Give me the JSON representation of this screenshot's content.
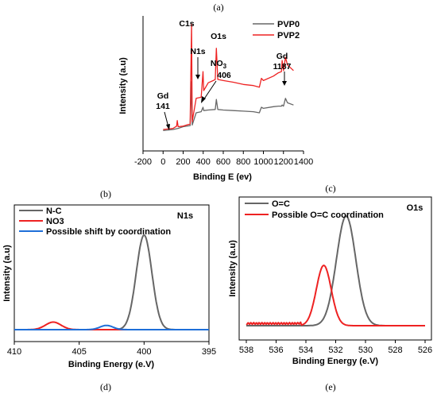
{
  "panels": {
    "a": "(a)",
    "b": "(b)",
    "c": "(c)",
    "d": "(d)",
    "e": "(e)"
  },
  "colors": {
    "gray": "#666666",
    "red": "#ee2222",
    "blue": "#1f6fd8",
    "axis": "#000000"
  },
  "chart_data": [
    {
      "id": "survey",
      "type": "line",
      "xlabel": "Binding E (ev)",
      "ylabel": "Intensity (a.u)",
      "xlim": [
        -200,
        1400
      ],
      "xticks": [
        -200,
        0,
        200,
        400,
        600,
        800,
        1000,
        1200,
        1400
      ],
      "ylim": [
        0,
        1
      ],
      "legend_position": "top-right",
      "series": [
        {
          "name": "PVP0",
          "color": "#666666",
          "points": [
            [
              0,
              0.04
            ],
            [
              100,
              0.05
            ],
            [
              150,
              0.06
            ],
            [
              200,
              0.075
            ],
            [
              270,
              0.085
            ],
            [
              284,
              0.48
            ],
            [
              290,
              0.09
            ],
            [
              330,
              0.2
            ],
            [
              380,
              0.21
            ],
            [
              398,
              0.25
            ],
            [
              405,
              0.22
            ],
            [
              450,
              0.225
            ],
            [
              520,
              0.23
            ],
            [
              531,
              0.32
            ],
            [
              545,
              0.23
            ],
            [
              600,
              0.225
            ],
            [
              700,
              0.22
            ],
            [
              800,
              0.215
            ],
            [
              900,
              0.21
            ],
            [
              960,
              0.2
            ],
            [
              980,
              0.25
            ],
            [
              1000,
              0.24
            ],
            [
              1100,
              0.255
            ],
            [
              1150,
              0.26
            ],
            [
              1180,
              0.26
            ],
            [
              1187,
              0.27
            ],
            [
              1200,
              0.26
            ],
            [
              1220,
              0.33
            ],
            [
              1240,
              0.29
            ],
            [
              1300,
              0.27
            ]
          ]
        },
        {
          "name": "PVP2",
          "color": "#ee2222",
          "points": [
            [
              0,
              0.05
            ],
            [
              100,
              0.06
            ],
            [
              135,
              0.08
            ],
            [
              141,
              0.13
            ],
            [
              150,
              0.075
            ],
            [
              200,
              0.08
            ],
            [
              270,
              0.1
            ],
            [
              284,
              1.0
            ],
            [
              290,
              0.12
            ],
            [
              330,
              0.33
            ],
            [
              380,
              0.34
            ],
            [
              398,
              0.57
            ],
            [
              405,
              0.4
            ],
            [
              450,
              0.47
            ],
            [
              500,
              0.49
            ],
            [
              520,
              0.5
            ],
            [
              531,
              0.78
            ],
            [
              545,
              0.5
            ],
            [
              600,
              0.49
            ],
            [
              700,
              0.475
            ],
            [
              800,
              0.455
            ],
            [
              900,
              0.445
            ],
            [
              960,
              0.43
            ],
            [
              980,
              0.51
            ],
            [
              1000,
              0.49
            ],
            [
              1100,
              0.53
            ],
            [
              1150,
              0.56
            ],
            [
              1180,
              0.57
            ],
            [
              1187,
              0.67
            ],
            [
              1200,
              0.58
            ],
            [
              1220,
              0.7
            ],
            [
              1240,
              0.63
            ],
            [
              1300,
              0.58
            ]
          ]
        }
      ],
      "annotations": [
        {
          "text": "C1s"
        },
        {
          "text": "O1s"
        },
        {
          "text": "N1s"
        },
        {
          "text": "NO3",
          "sub": "3",
          "value": "406"
        },
        {
          "text": "Gd",
          "value": "1187"
        },
        {
          "text": "Gd",
          "value": "141"
        }
      ]
    },
    {
      "id": "n1s",
      "type": "line",
      "title": "N1s",
      "xlabel": "Binding Energy (e.V)",
      "ylabel": "Intensity (a.u)",
      "xlim": [
        410,
        395
      ],
      "xticks": [
        410,
        405,
        400,
        395
      ],
      "legend_position": "top-left",
      "series": [
        {
          "name": "N-C",
          "color": "#666666",
          "peak": {
            "center": 400.0,
            "height": 1.0,
            "sigma": 0.6
          }
        },
        {
          "name": "NO3",
          "color": "#ee2222",
          "peak": {
            "center": 407.0,
            "height": 0.08,
            "sigma": 0.6
          }
        },
        {
          "name": "Possible shift by coordination",
          "color": "#1f6fd8",
          "peak": {
            "center": 402.9,
            "height": 0.045,
            "sigma": 0.5
          }
        }
      ]
    },
    {
      "id": "o1s",
      "type": "line",
      "title": "O1s",
      "xlabel": "Binding Energy (e.V)",
      "ylabel": "Intensity (a.u)",
      "xlim": [
        538,
        526
      ],
      "xticks": [
        538,
        536,
        534,
        532,
        530,
        528,
        526
      ],
      "legend_position": "top-left",
      "series": [
        {
          "name": "O=C",
          "color": "#666666",
          "peak": {
            "center": 531.3,
            "height": 1.0,
            "sigma": 0.65
          }
        },
        {
          "name": "Possible O=C coordination",
          "color": "#ee2222",
          "peak": {
            "center": 532.8,
            "height": 0.55,
            "sigma": 0.5
          }
        }
      ]
    }
  ]
}
